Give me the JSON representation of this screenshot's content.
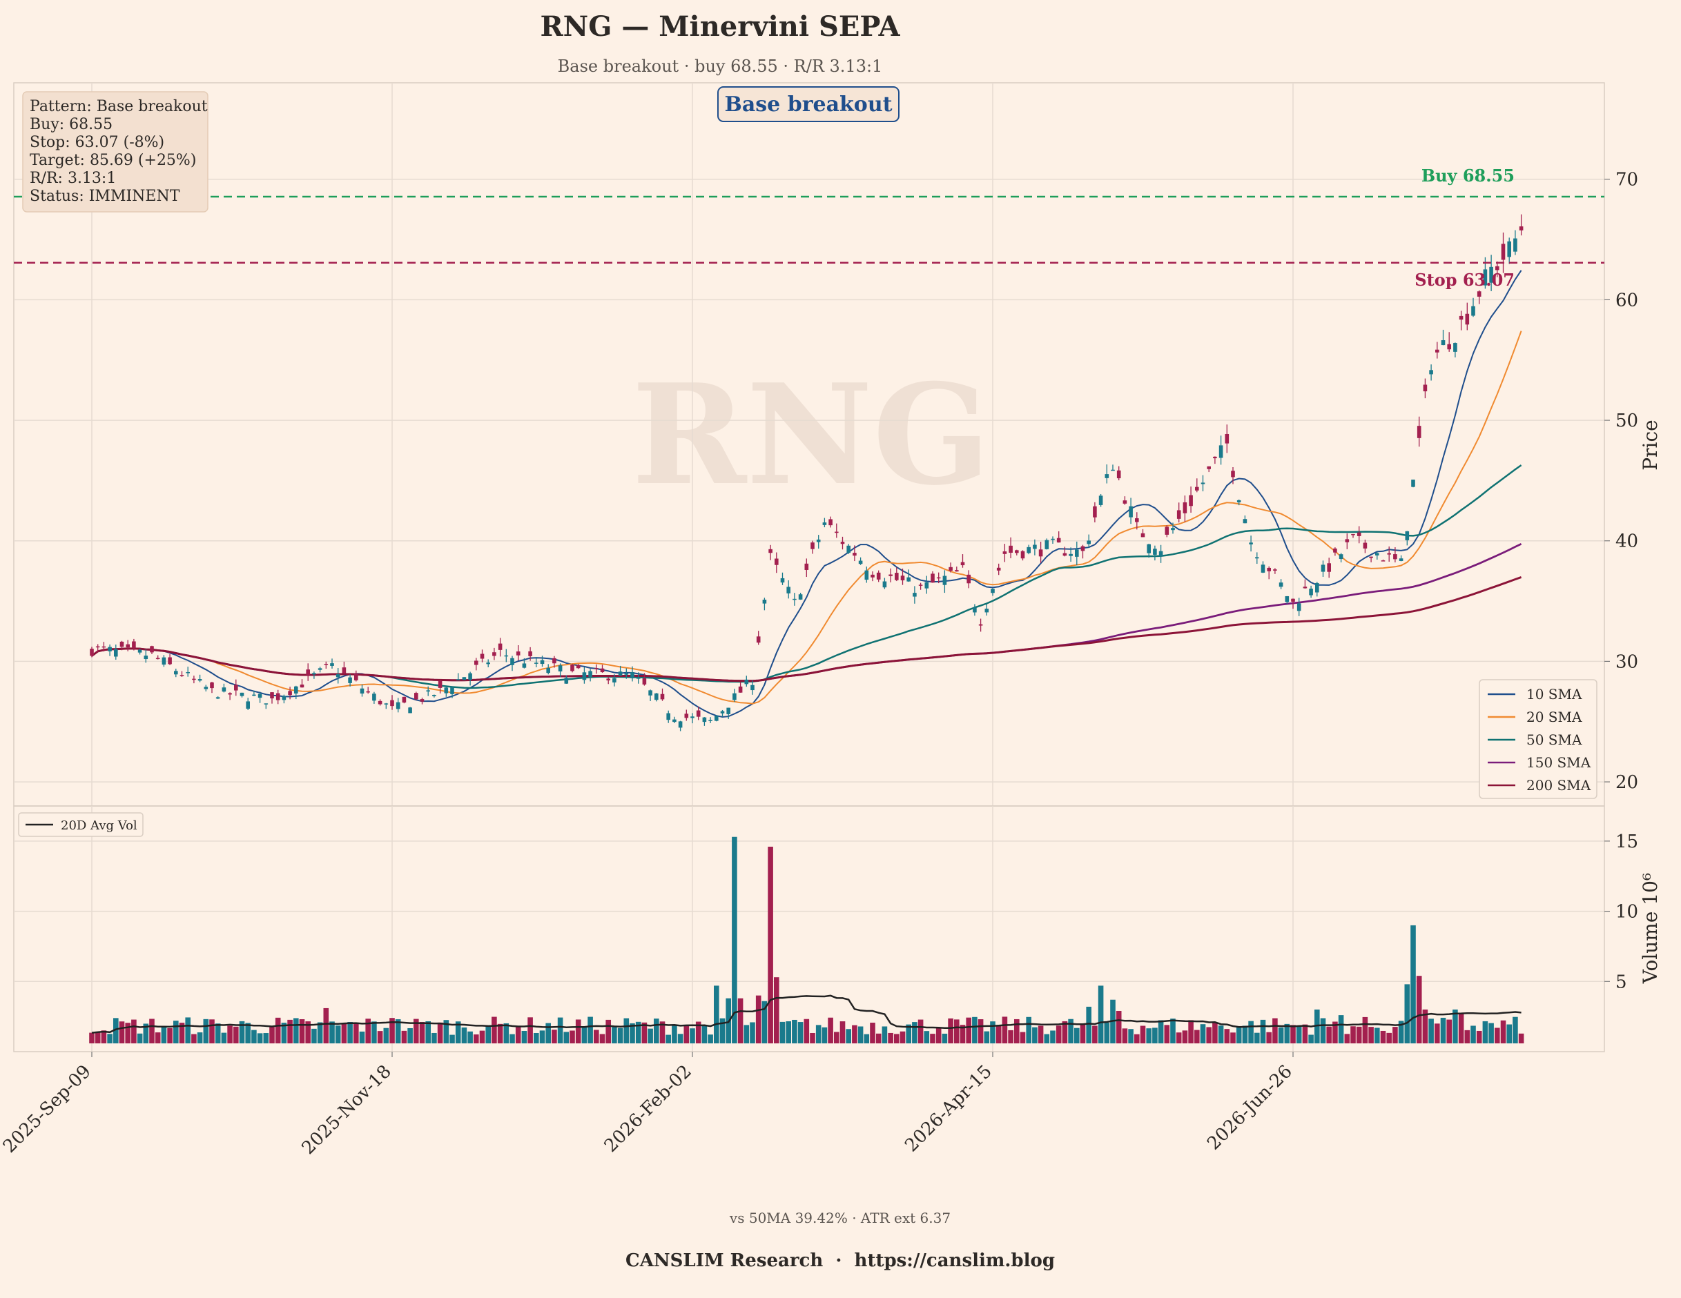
{
  "title": "RNG — Minervini SEPA",
  "subtitle": "Base breakout · buy 68.55 · R/R 3.13:1",
  "watermark": "RNG",
  "pattern_badge": "Base breakout",
  "info_box": [
    "Pattern: Base breakout",
    "Buy: 68.55",
    "Stop: 63.07 (-8%)",
    "Target: 85.69 (+25%)",
    "R/R: 3.13:1",
    "Status: IMMINENT"
  ],
  "footer_stats": "vs 50MA 39.42% · ATR ext 6.37",
  "footer_brand": "CANSLIM Research  ·  https://canslim.blog",
  "colors": {
    "background": "#fdf1e6",
    "up": "#1a7a8c",
    "down": "#a3204f",
    "buy_line": "#1e9e5a",
    "stop_line": "#a3204f",
    "sma10": "#1f4e8c",
    "sma20": "#f08a30",
    "sma50": "#0f7272",
    "sma150": "#7a1c7a",
    "sma200": "#8c1438",
    "avg_vol": "#222222"
  },
  "chart_data": {
    "type": "candlestick",
    "ticker": "RNG",
    "x_tick_labels": [
      "2025-Sep-09",
      "2025-Nov-18",
      "2026-Feb-02",
      "2026-Apr-15",
      "2026-Jun-26"
    ],
    "x_tick_indices": [
      0,
      50,
      100,
      150,
      200
    ],
    "n_sessions": 239,
    "price_panel": {
      "ylabel": "Price",
      "ylim": [
        18,
        78
      ],
      "yticks": [
        20,
        30,
        40,
        50,
        60,
        70
      ]
    },
    "volume_panel": {
      "ylabel": "Volume  10⁶",
      "ylim": [
        0,
        17.5
      ],
      "yticks": [
        5,
        10,
        15
      ]
    },
    "levels": {
      "buy": {
        "value": 68.55,
        "label": "Buy 68.55"
      },
      "stop": {
        "value": 63.07,
        "label": "Stop 63.07"
      }
    },
    "price_anchors": [
      [
        0,
        31.0
      ],
      [
        10,
        30.5
      ],
      [
        20,
        27.5
      ],
      [
        30,
        26.8
      ],
      [
        40,
        29.6
      ],
      [
        50,
        26.0
      ],
      [
        58,
        27.5
      ],
      [
        68,
        30.7
      ],
      [
        80,
        29.0
      ],
      [
        90,
        28.8
      ],
      [
        97,
        25.5
      ],
      [
        103,
        25.0
      ],
      [
        110,
        28.5
      ],
      [
        113,
        38.5
      ],
      [
        117,
        34.8
      ],
      [
        122,
        41.5
      ],
      [
        130,
        37.5
      ],
      [
        138,
        36.0
      ],
      [
        145,
        37.5
      ],
      [
        148,
        33.5
      ],
      [
        152,
        39.0
      ],
      [
        160,
        39.5
      ],
      [
        165,
        39.0
      ],
      [
        170,
        46.5
      ],
      [
        174,
        41.0
      ],
      [
        178,
        39.5
      ],
      [
        182,
        42.5
      ],
      [
        189,
        48.0
      ],
      [
        193,
        40.0
      ],
      [
        200,
        34.8
      ],
      [
        210,
        40.0
      ],
      [
        218,
        38.0
      ],
      [
        223,
        55.0
      ],
      [
        228,
        58.0
      ],
      [
        233,
        62.5
      ],
      [
        236,
        64.0
      ],
      [
        238,
        66.0
      ]
    ],
    "volume_spikes": [
      [
        39,
        3.1
      ],
      [
        50,
        2.4
      ],
      [
        104,
        4.7
      ],
      [
        106,
        3.8
      ],
      [
        107,
        15.3
      ],
      [
        108,
        3.8
      ],
      [
        111,
        4.0
      ],
      [
        112,
        3.6
      ],
      [
        113,
        14.6
      ],
      [
        114,
        5.3
      ],
      [
        166,
        3.2
      ],
      [
        168,
        4.7
      ],
      [
        170,
        3.7
      ],
      [
        171,
        2.9
      ],
      [
        204,
        3.0
      ],
      [
        208,
        2.6
      ],
      [
        219,
        4.8
      ],
      [
        220,
        9.0
      ],
      [
        221,
        5.4
      ],
      [
        222,
        3.0
      ],
      [
        227,
        3.0
      ],
      [
        228,
        2.7
      ]
    ],
    "series": [
      {
        "name": "10 SMA",
        "window": 10
      },
      {
        "name": "20 SMA",
        "window": 20
      },
      {
        "name": "50 SMA",
        "window": 50
      },
      {
        "name": "150 SMA",
        "window": 150
      },
      {
        "name": "200 SMA",
        "window": 200
      }
    ],
    "volume_legend": "20D Avg Vol",
    "grid": true,
    "legend_position": "right",
    "volume_legend_position": "top-left"
  }
}
